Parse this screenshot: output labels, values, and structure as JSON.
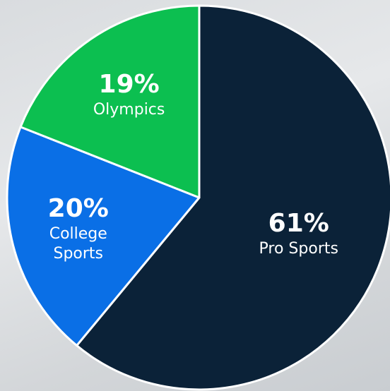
{
  "chart_data": {
    "type": "pie",
    "categories": [
      "Pro Sports",
      "College Sports",
      "Olympics"
    ],
    "values": [
      61,
      20,
      19
    ],
    "value_labels": [
      "61%",
      "20%",
      "19%"
    ],
    "colors": [
      "#0b2238",
      "#0a6fe6",
      "#0cbf50"
    ]
  }
}
